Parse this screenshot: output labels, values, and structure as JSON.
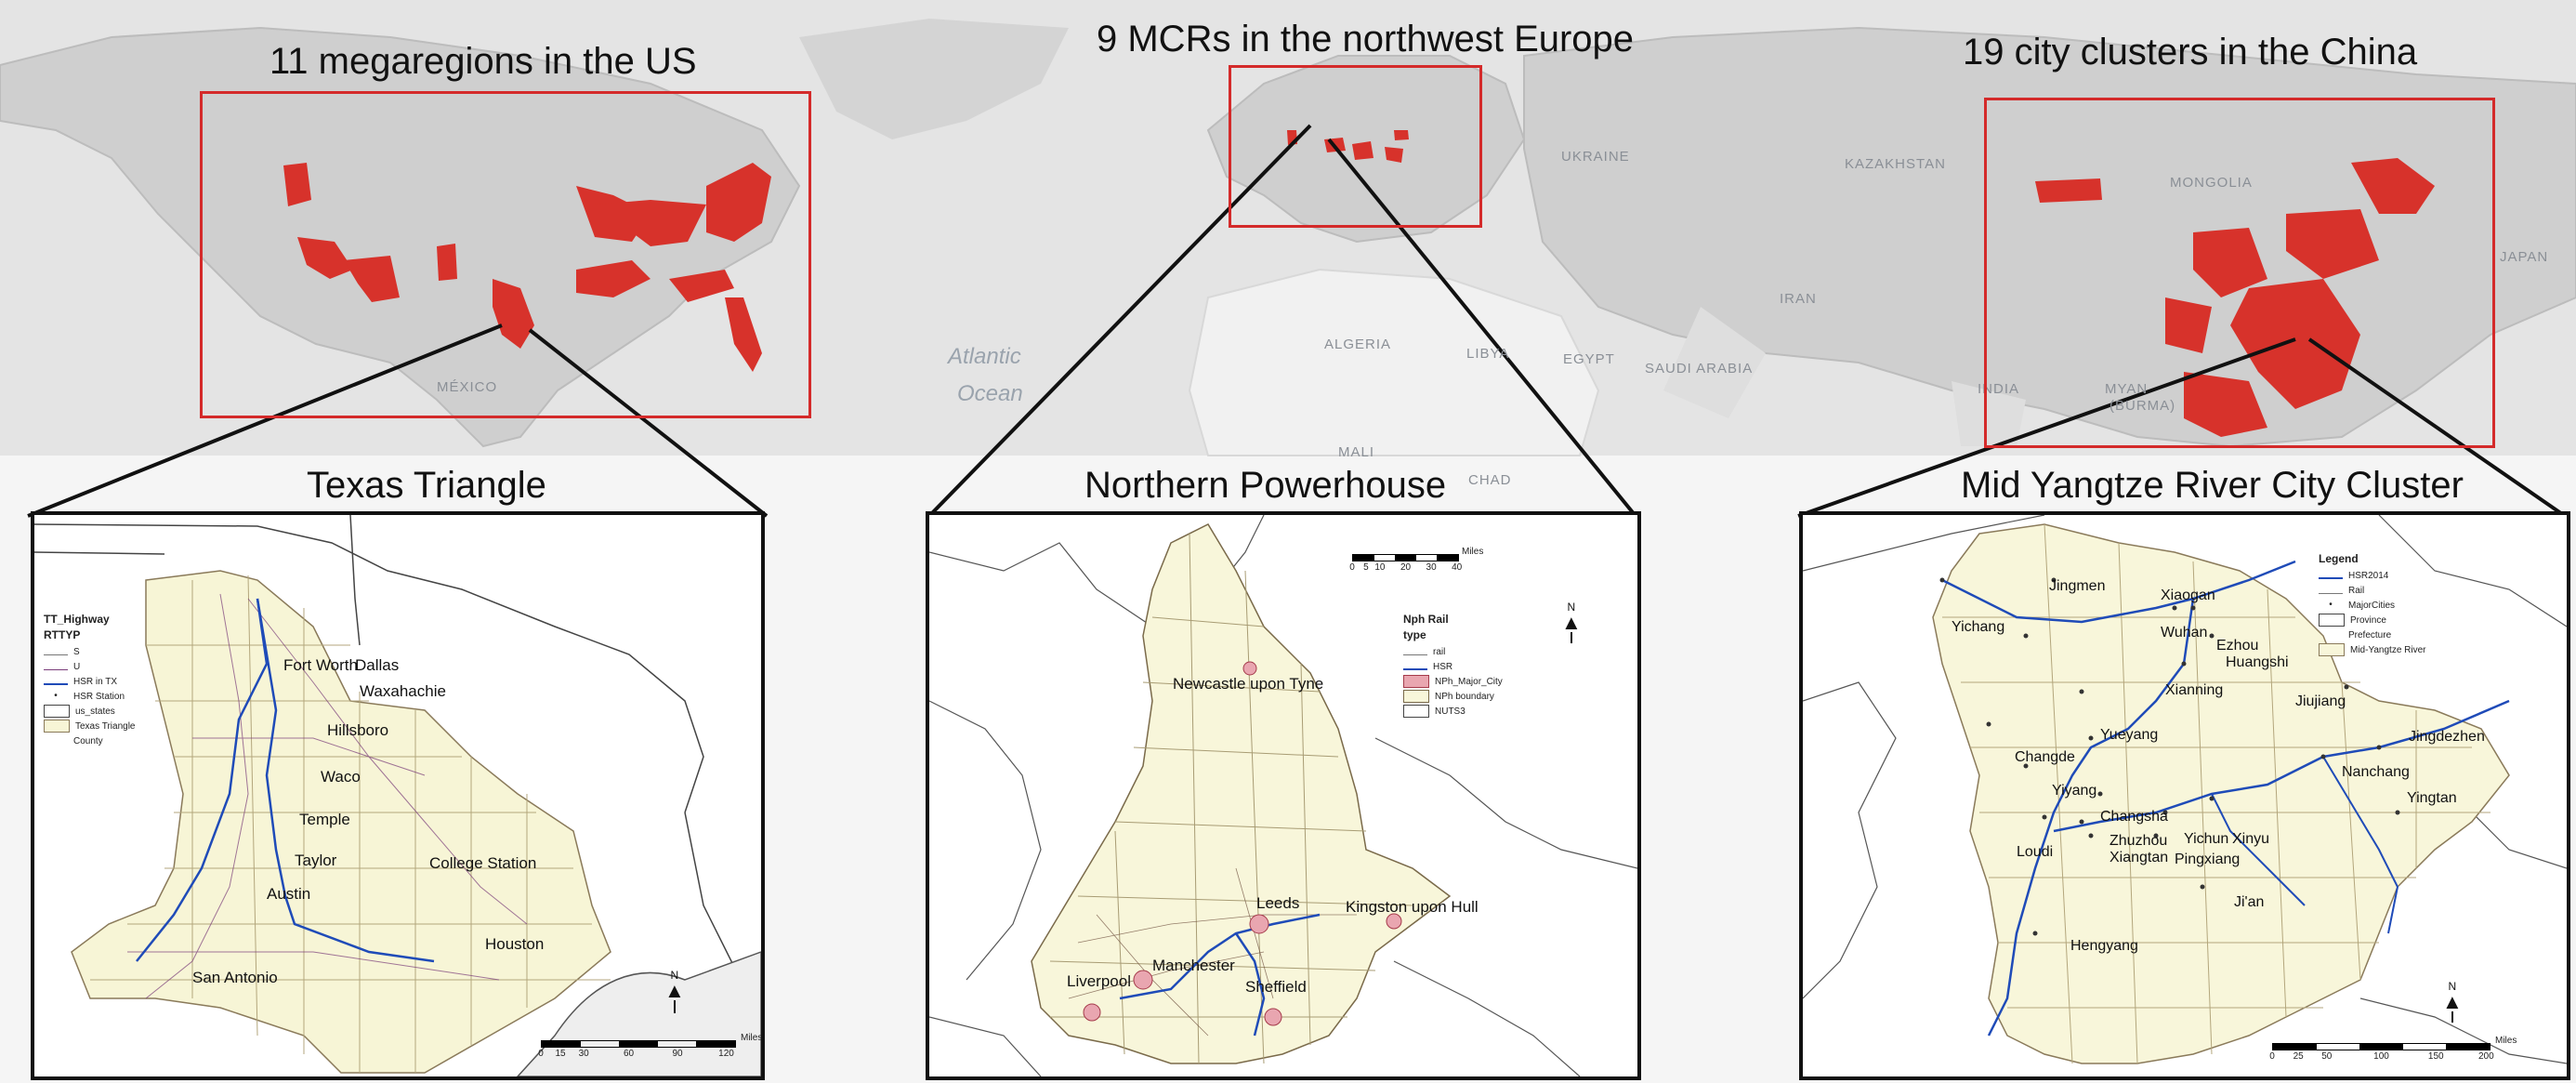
{
  "titles": {
    "us": "11 megaregions in the US",
    "europe": "9 MCRs in the northwest Europe",
    "china": "19 city clusters in the China",
    "texas": "Texas Triangle",
    "nph": "Northern Powerhouse",
    "yangtze": "Mid Yangtze River City Cluster"
  },
  "world_labels": {
    "mexico": "MÉXICO",
    "atlantic1": "Atlantic",
    "atlantic2": "Ocean",
    "algeria": "ALGERIA",
    "libya": "LIBYA",
    "egypt": "EGYPT",
    "saudi": "SAUDI ARABIA",
    "iran": "IRAN",
    "ukraine": "UKRAINE",
    "kazakhstan": "KAZAKHSTAN",
    "mongolia": "MONGOLIA",
    "india": "INDIA",
    "myanmar": "MYAN",
    "burma": "(BURMA)",
    "japan": "JAPAN",
    "mali": "MALI",
    "chad": "CHAD"
  },
  "texas": {
    "legend": {
      "title1": "TT_Highway",
      "title2": "RTTYP",
      "items": [
        "S",
        "U",
        "HSR in TX",
        "HSR Station",
        "us_states",
        "Texas Triangle",
        "County"
      ]
    },
    "cities": [
      "Fort Worth",
      "Dallas",
      "Waxahachie",
      "Hillsboro",
      "Waco",
      "Temple",
      "Taylor",
      "Austin",
      "College Station",
      "Houston",
      "San Antonio"
    ],
    "scale": {
      "ticks": [
        "0",
        "15",
        "30",
        "60",
        "90",
        "120"
      ],
      "unit": "Miles"
    },
    "north": "N"
  },
  "nph": {
    "legend": {
      "title1": "Nph Rail",
      "title2": "type",
      "items": [
        "rail",
        "HSR",
        "NPh_Major_City",
        "NPh boundary",
        "NUTS3"
      ]
    },
    "cities": [
      "Newcastle upon Tyne",
      "Leeds",
      "Kingston upon Hull",
      "Manchester",
      "Liverpool",
      "Sheffield"
    ],
    "scale": {
      "ticks": [
        "0",
        "5",
        "10",
        "20",
        "30",
        "40"
      ],
      "unit": "Miles"
    },
    "north": "N"
  },
  "yangtze": {
    "legend": {
      "title1": "Legend",
      "items": [
        "HSR2014",
        "Rail",
        "MajorCities",
        "Province",
        "Prefecture",
        "Mid-Yangtze River"
      ]
    },
    "cities": [
      "Jingmen",
      "Xiaogan",
      "Yichang",
      "Wuhan",
      "Ezhou",
      "Huangshi",
      "Xianning",
      "Jiujiang",
      "Jingdezhen",
      "Yueyang",
      "Changde",
      "Yiyang",
      "Changsha",
      "Nanchang",
      "Yingtan",
      "Loudi",
      "Zhuzhou",
      "Xiangtan",
      "Yichun",
      "Xinyu",
      "Pingxiang",
      "Ji'an",
      "Hengyang"
    ],
    "scale": {
      "ticks": [
        "0",
        "25",
        "50",
        "100",
        "150",
        "200"
      ],
      "unit": "Miles"
    },
    "north": "N"
  },
  "colors": {
    "region": "#d7322b",
    "box": "#d42a2a",
    "land": "#cfcfcf",
    "sea": "#e6e6e6",
    "triangle": "#f8f6d9",
    "hsr": "#1f4bb8"
  }
}
